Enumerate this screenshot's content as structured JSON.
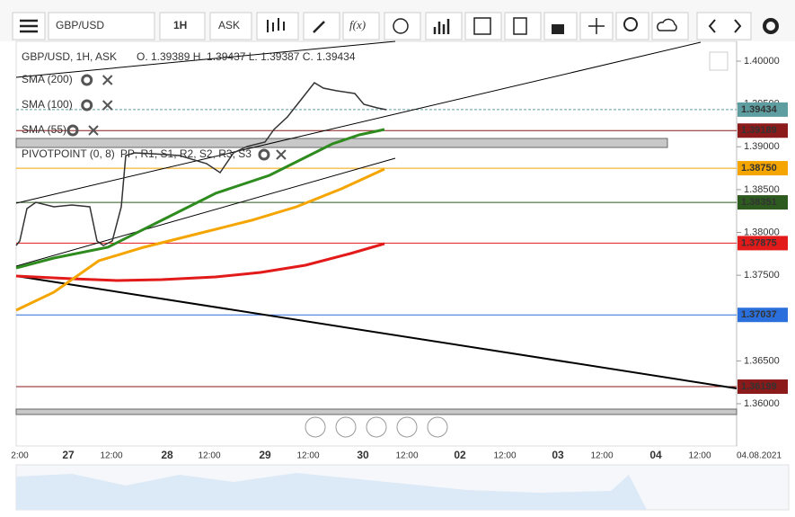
{
  "toolbar": {
    "symbol": "GBP/USD",
    "timeframe": "1H",
    "side": "ASK",
    "function_button": "f(x)"
  },
  "legend": {
    "header": "GBP/USD, 1H, ASK",
    "ohlc": "O. 1.39389 H. 1.39437 L. 1.39387 C. 1.39434",
    "indicators": [
      {
        "name": "SMA (200)",
        "color": "#e31a1a"
      },
      {
        "name": "SMA (100)",
        "color": "#f5a500"
      },
      {
        "name": "SMA (55)",
        "color": "#2e8b1e"
      }
    ],
    "pivot": {
      "name": "PIVOTPOINT (0, 8)",
      "separator": ", ",
      "levels": [
        {
          "name": "PP",
          "color": "#4a90d9"
        },
        {
          "name": "R1",
          "color": "#2e8b1e"
        },
        {
          "name": "S1",
          "color": "#e31a1a"
        },
        {
          "name": "R2",
          "color": "#e31a1a"
        },
        {
          "name": "S2",
          "color": "#f5a500"
        },
        {
          "name": "R3",
          "color": "#f5a500"
        },
        {
          "name": "S3",
          "color": "#f5a500"
        }
      ]
    }
  },
  "price_axis": {
    "ticks": [
      "1.40000",
      "1.39500",
      "1.39000",
      "1.38500",
      "1.38000",
      "1.37500",
      "1.36500",
      "1.36000"
    ],
    "levels": [
      {
        "label": "1.39434",
        "color": "#5f9ea0",
        "text_color": "#ffffff"
      },
      {
        "label": "1.39189",
        "color": "#8b1a1a",
        "text_color": "#ffffff"
      },
      {
        "label": "1.38750",
        "color": "#f5a500",
        "text_color": "#000000"
      },
      {
        "label": "1.38351",
        "color": "#2d5a1e",
        "text_color": "#ffffff"
      },
      {
        "label": "1.37875",
        "color": "#e31a1a",
        "text_color": "#ffffff"
      },
      {
        "label": "1.37037",
        "color": "#2a6fdb",
        "text_color": "#ffffff"
      },
      {
        "label": "1.36199",
        "color": "#8b1a1a",
        "text_color": "#ffffff"
      }
    ]
  },
  "time_axis": {
    "labels": [
      "2:00",
      "27",
      "12:00",
      "28",
      "12:00",
      "29",
      "12:00",
      "30",
      "12:00",
      "02",
      "12:00",
      "03",
      "12:00",
      "04",
      "12:00",
      "04.08.2021"
    ]
  }
}
